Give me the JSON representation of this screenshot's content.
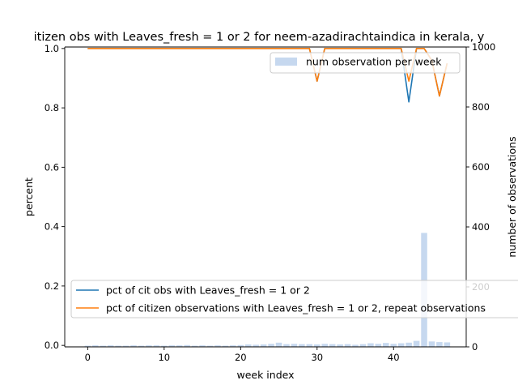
{
  "chart_data": {
    "type": "line",
    "title": "itizen obs with Leaves_fresh = 1 or 2 for neem-azadirachtaindica in kerala, y",
    "xlabel": "week index",
    "ylabel_left": "percent",
    "ylabel_right": "number of observations",
    "xlim": [
      -3,
      49.5
    ],
    "ylim_left": [
      -0.005,
      1.005
    ],
    "ylim_right": [
      0,
      1000
    ],
    "x_ticks": [
      0,
      10,
      20,
      30,
      40
    ],
    "y_ticks_left": [
      0.0,
      0.2,
      0.4,
      0.6,
      0.8,
      1.0
    ],
    "y_tick_labels_left": [
      "0.0",
      "0.2",
      "0.4",
      "0.6",
      "0.8",
      "1.0"
    ],
    "y_ticks_right": [
      0,
      200,
      400,
      600,
      800,
      1000
    ],
    "x": [
      0,
      1,
      2,
      3,
      4,
      5,
      6,
      7,
      8,
      9,
      10,
      11,
      12,
      13,
      14,
      15,
      16,
      17,
      18,
      19,
      20,
      21,
      22,
      23,
      24,
      25,
      26,
      27,
      28,
      29,
      30,
      31,
      32,
      33,
      34,
      35,
      36,
      37,
      38,
      39,
      40,
      41,
      42,
      43,
      44,
      45,
      46,
      47
    ],
    "series": [
      {
        "name": "pct of cit obs with Leaves_fresh = 1 or 2",
        "axis": "left",
        "color": "#1f77b4",
        "values": [
          1,
          1,
          1,
          1,
          1,
          1,
          1,
          1,
          1,
          1,
          1,
          1,
          1,
          1,
          1,
          1,
          1,
          1,
          1,
          1,
          1,
          1,
          1,
          1,
          1,
          1,
          1,
          1,
          1,
          1,
          0.89,
          1,
          1,
          1,
          1,
          1,
          1,
          1,
          1,
          1,
          1,
          1,
          0.82,
          1,
          1,
          0.96,
          0.84,
          0.95
        ]
      },
      {
        "name": "pct of citizen observations with Leaves_fresh = 1 or 2, repeat observations",
        "axis": "left",
        "color": "#ff7f0e",
        "values": [
          1,
          1,
          1,
          1,
          1,
          1,
          1,
          1,
          1,
          1,
          1,
          1,
          1,
          1,
          1,
          1,
          1,
          1,
          1,
          1,
          1,
          1,
          1,
          1,
          1,
          1,
          1,
          1,
          1,
          1,
          0.89,
          1,
          1,
          1,
          1,
          1,
          1,
          1,
          1,
          1,
          1,
          1,
          0.89,
          1,
          1,
          0.96,
          0.84,
          0.95
        ]
      },
      {
        "name": "num observation per week",
        "axis": "right",
        "kind": "bar",
        "color": "#aec7e8",
        "values": [
          4,
          5,
          4,
          5,
          4,
          4,
          5,
          4,
          5,
          5,
          4,
          5,
          5,
          6,
          4,
          5,
          4,
          5,
          4,
          5,
          6,
          8,
          7,
          8,
          10,
          14,
          9,
          10,
          9,
          9,
          8,
          10,
          9,
          8,
          9,
          7,
          9,
          12,
          10,
          13,
          10,
          12,
          14,
          20,
          380,
          18,
          16,
          15
        ]
      }
    ],
    "legend_left_entries": [
      "pct of cit obs with Leaves_fresh = 1 or 2",
      "pct of citizen observations with Leaves_fresh = 1 or 2, repeat observations"
    ],
    "legend_right_entries": [
      "num observation per week"
    ],
    "legend_left_placement": "lower-left",
    "legend_right_placement": "upper-right",
    "grid": false
  }
}
